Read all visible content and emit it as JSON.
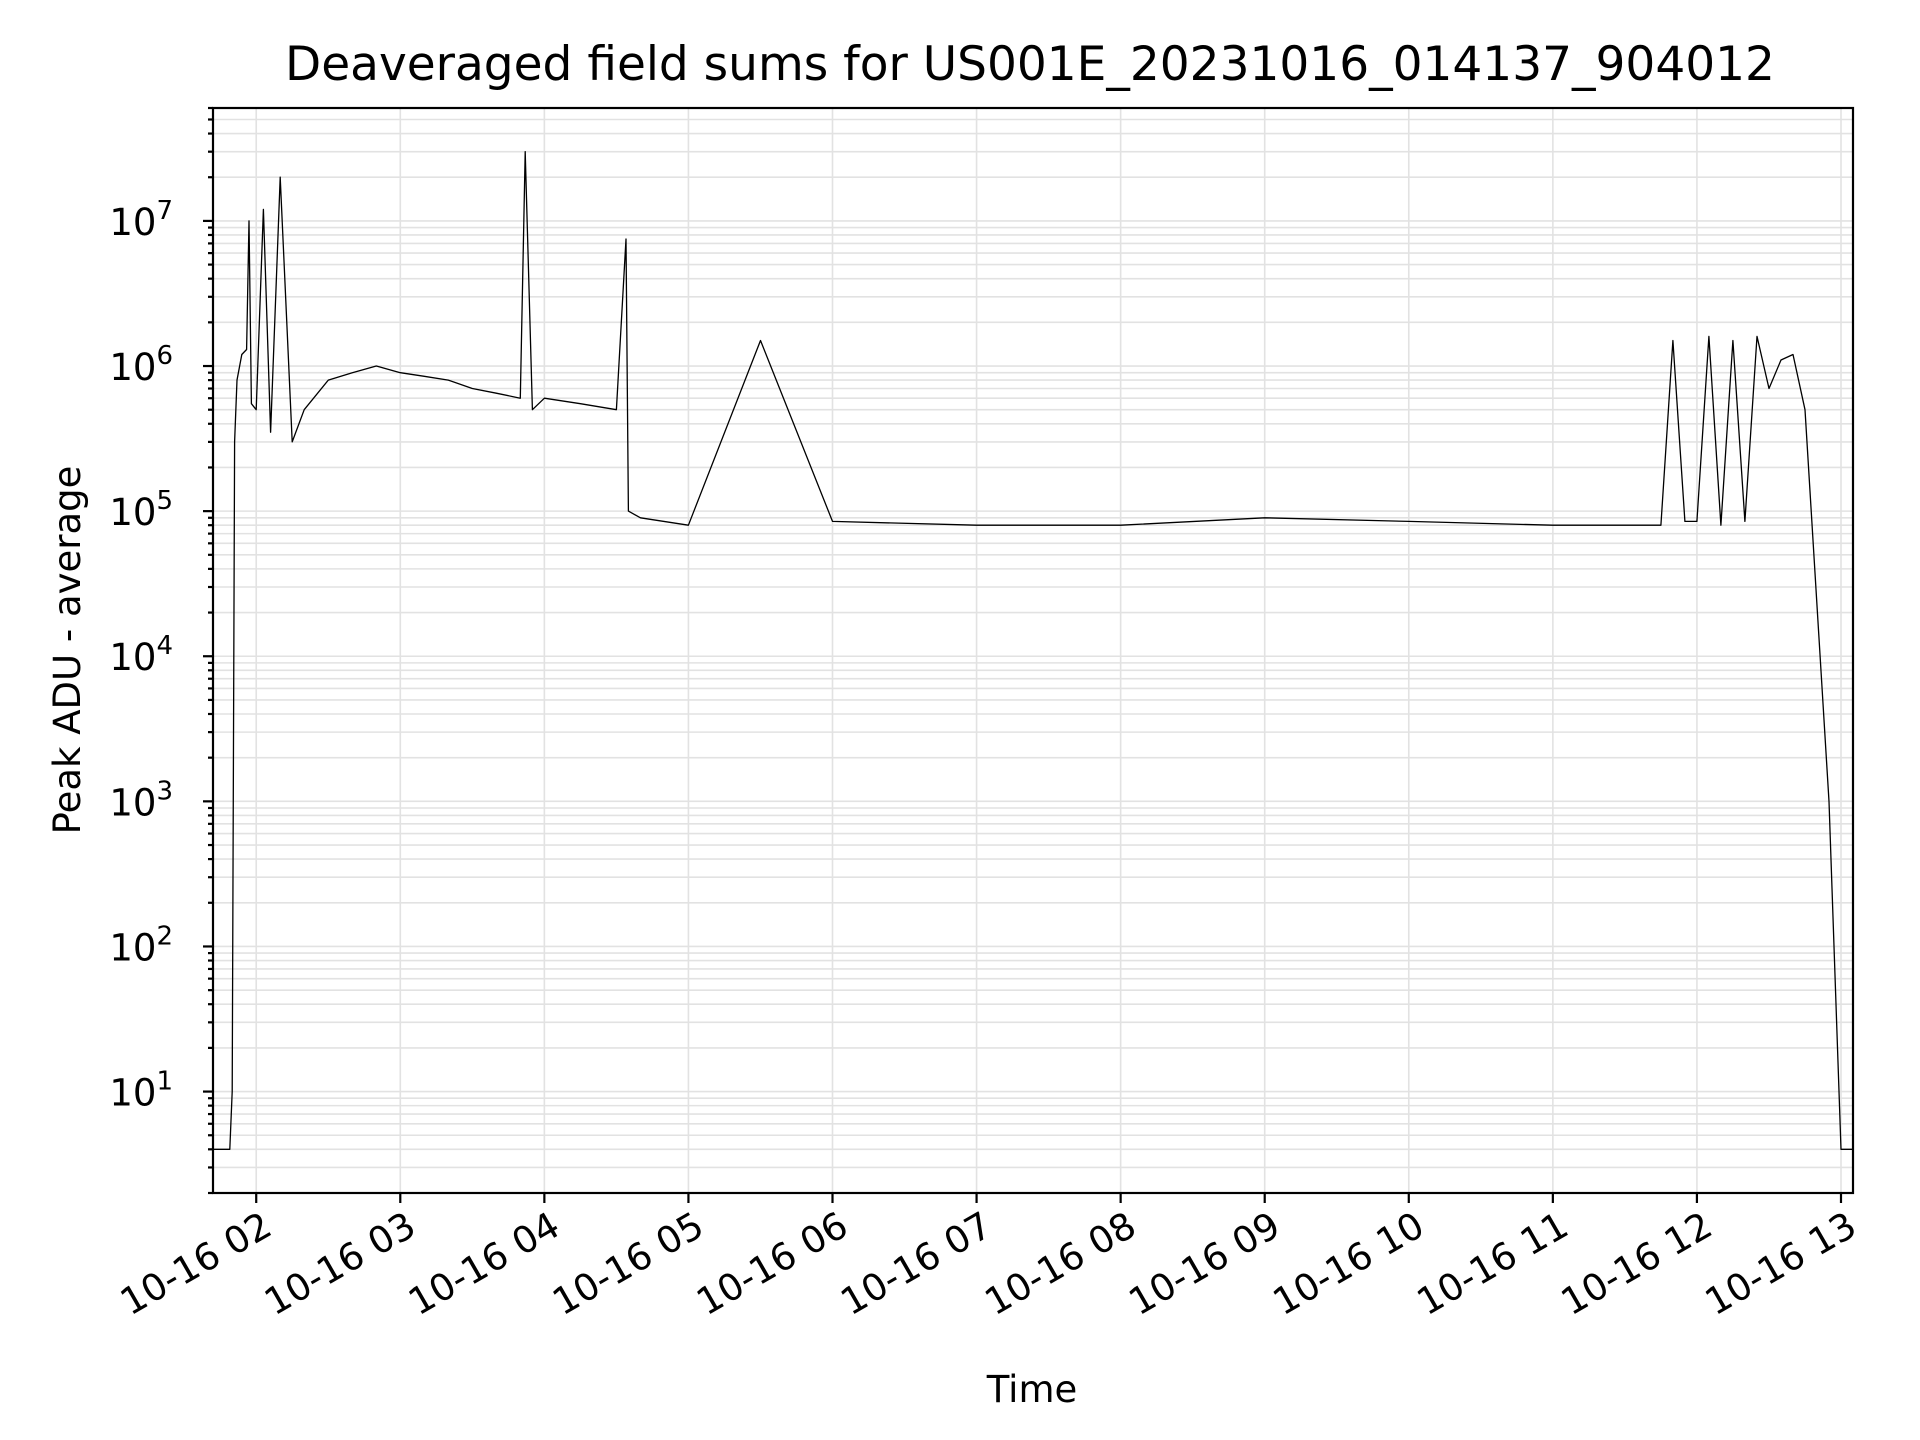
{
  "chart_data": {
    "type": "line",
    "title": "Deaveraged field sums for US001E_20231016_014137_904012",
    "xlabel": "Time",
    "ylabel": "Peak ADU - average",
    "yscale": "log",
    "ylim": [
      2,
      60000000
    ],
    "xlim": [
      "2023-10-16 01:42",
      "2023-10-16 13:05"
    ],
    "grid": true,
    "x_ticks": [
      "10-16 02",
      "10-16 03",
      "10-16 04",
      "10-16 05",
      "10-16 06",
      "10-16 07",
      "10-16 08",
      "10-16 09",
      "10-16 10",
      "10-16 11",
      "10-16 12",
      "10-16 13"
    ],
    "y_ticks": [
      {
        "value": 10,
        "base": "10",
        "exp": "1"
      },
      {
        "value": 100,
        "base": "10",
        "exp": "2"
      },
      {
        "value": 1000,
        "base": "10",
        "exp": "3"
      },
      {
        "value": 10000,
        "base": "10",
        "exp": "4"
      },
      {
        "value": 100000,
        "base": "10",
        "exp": "5"
      },
      {
        "value": 1000000,
        "base": "10",
        "exp": "6"
      },
      {
        "value": 10000000,
        "base": "10",
        "exp": "7"
      }
    ],
    "line_color": "#000000",
    "series": [
      {
        "x": [
          "2023-10-16 01:42",
          "2023-10-16 01:49",
          "2023-10-16 01:50",
          "2023-10-16 01:51",
          "2023-10-16 01:52",
          "2023-10-16 01:54",
          "2023-10-16 01:55",
          "2023-10-16 01:56",
          "2023-10-16 01:57",
          "2023-10-16 01:58",
          "2023-10-16 02:00",
          "2023-10-16 02:03",
          "2023-10-16 02:06",
          "2023-10-16 02:10",
          "2023-10-16 02:15",
          "2023-10-16 02:20",
          "2023-10-16 02:30",
          "2023-10-16 02:40",
          "2023-10-16 02:50",
          "2023-10-16 03:00",
          "2023-10-16 03:10",
          "2023-10-16 03:20",
          "2023-10-16 03:30",
          "2023-10-16 03:40",
          "2023-10-16 03:50",
          "2023-10-16 03:52",
          "2023-10-16 03:55",
          "2023-10-16 04:00",
          "2023-10-16 04:15",
          "2023-10-16 04:30",
          "2023-10-16 04:34",
          "2023-10-16 04:35",
          "2023-10-16 04:40",
          "2023-10-16 05:00",
          "2023-10-16 05:30",
          "2023-10-16 06:00",
          "2023-10-16 07:00",
          "2023-10-16 08:00",
          "2023-10-16 09:00",
          "2023-10-16 10:00",
          "2023-10-16 11:00",
          "2023-10-16 11:45",
          "2023-10-16 11:50",
          "2023-10-16 11:55",
          "2023-10-16 12:00",
          "2023-10-16 12:05",
          "2023-10-16 12:10",
          "2023-10-16 12:15",
          "2023-10-16 12:20",
          "2023-10-16 12:25",
          "2023-10-16 12:30",
          "2023-10-16 12:35",
          "2023-10-16 12:40",
          "2023-10-16 12:45",
          "2023-10-16 12:55",
          "2023-10-16 13:00",
          "2023-10-16 13:05"
        ],
        "y": [
          4,
          4,
          10,
          300000,
          800000,
          1200000,
          1250000,
          1300000,
          10000000,
          550000,
          500000,
          12000000,
          350000,
          20000000,
          300000,
          500000,
          800000,
          900000,
          1000000,
          900000,
          850000,
          800000,
          700000,
          650000,
          600000,
          30000000,
          500000,
          600000,
          550000,
          500000,
          7500000,
          100000,
          90000,
          80000,
          1500000,
          85000,
          80000,
          80000,
          90000,
          85000,
          80000,
          80000,
          1500000,
          85000,
          85000,
          1600000,
          80000,
          1500000,
          85000,
          1600000,
          700000,
          1100000,
          1200000,
          500000,
          1000,
          4,
          4
        ]
      }
    ]
  }
}
